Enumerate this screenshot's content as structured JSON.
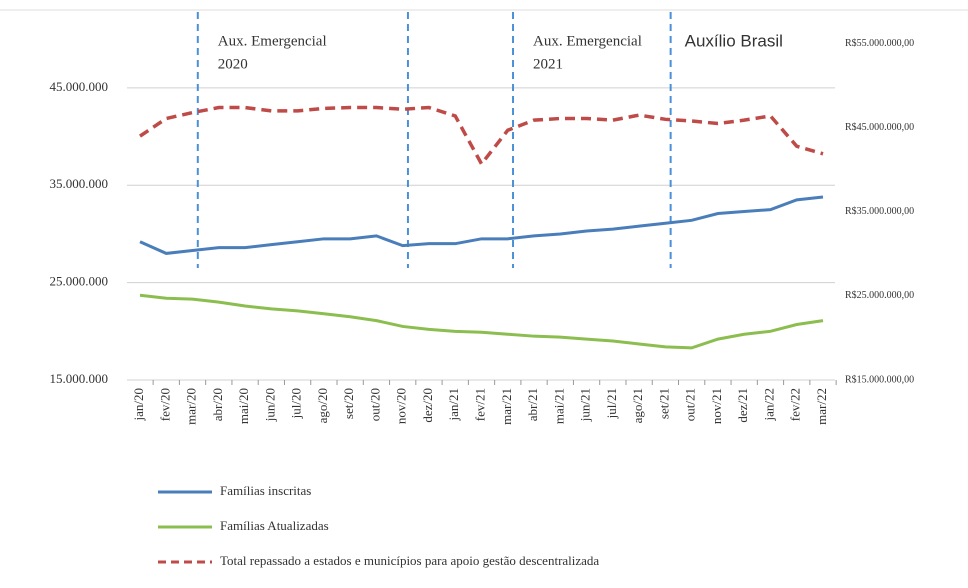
{
  "chart_data": {
    "type": "line",
    "categories": [
      "jan/20",
      "fev/20",
      "mar/20",
      "abr/20",
      "mai/20",
      "jun/20",
      "jul/20",
      "ago/20",
      "set/20",
      "out/20",
      "nov/20",
      "dez/20",
      "jan/21",
      "fev/21",
      "mar/21",
      "abr/21",
      "mai/21",
      "jun/21",
      "jul/21",
      "ago/21",
      "set/21",
      "out/21",
      "nov/21",
      "dez/21",
      "jan/22",
      "fev/22",
      "mar/22"
    ],
    "series": [
      {
        "name": "Famílias inscritas",
        "color": "#4a7ebb",
        "dashed": false,
        "values": [
          29200000,
          28000000,
          28300000,
          28600000,
          28600000,
          28900000,
          29200000,
          29500000,
          29500000,
          29800000,
          28800000,
          29000000,
          29000000,
          29500000,
          29500000,
          29800000,
          30000000,
          30300000,
          30500000,
          30800000,
          31100000,
          31400000,
          32100000,
          32300000,
          32500000,
          33500000,
          33800000
        ]
      },
      {
        "name": "Famílias Atualizadas",
        "color": "#8cbd4f",
        "dashed": false,
        "values": [
          23700000,
          23400000,
          23300000,
          23000000,
          22600000,
          22300000,
          22100000,
          21800000,
          21500000,
          21100000,
          20500000,
          20200000,
          20000000,
          19900000,
          19700000,
          19500000,
          19400000,
          19200000,
          19000000,
          18700000,
          18400000,
          18300000,
          19200000,
          19700000,
          20000000,
          20700000,
          21100000
        ]
      },
      {
        "name": "Total repassado a estados e municípios para apoio gestão descentralizada",
        "color": "#be4b48",
        "dashed": true,
        "axis": "y2",
        "values": [
          44000000,
          46100000,
          46800000,
          47400000,
          47400000,
          47000000,
          47000000,
          47300000,
          47400000,
          47400000,
          47200000,
          47400000,
          46400000,
          40700000,
          44700000,
          45900000,
          46100000,
          46100000,
          45900000,
          46500000,
          46000000,
          45800000,
          45500000,
          45900000,
          46400000,
          42800000,
          41900000
        ]
      }
    ],
    "ylim": [
      15000000,
      53000000
    ],
    "yticks": [
      {
        "value": 15000000,
        "label": "15.000.000"
      },
      {
        "value": 25000000,
        "label": "25.000.000"
      },
      {
        "value": 35000000,
        "label": "35.000.000"
      },
      {
        "value": 45000000,
        "label": "45.000.000"
      }
    ],
    "y2lim": [
      15000000,
      59000000
    ],
    "y2ticks": [
      {
        "value": 15000000,
        "label": "R$15.000.000,00"
      },
      {
        "value": 25000000,
        "label": "R$25.000.000,00"
      },
      {
        "value": 35000000,
        "label": "R$35.000.000,00"
      },
      {
        "value": 45000000,
        "label": "R$45.000.000,00"
      },
      {
        "value": 55000000,
        "label": "R$55.000.000,00"
      }
    ],
    "grid": true,
    "annotations": [
      {
        "at": "mar/20",
        "lines": [
          "Aux. Emergencial",
          "2020"
        ]
      },
      {
        "at": "nov/20",
        "lines": []
      },
      {
        "at": "mar/21",
        "lines": [
          "Aux. Emergencial",
          "2021"
        ]
      },
      {
        "at": "set/21",
        "lines": [
          "Auxílio Brasil"
        ]
      }
    ],
    "legend": "bottom"
  }
}
